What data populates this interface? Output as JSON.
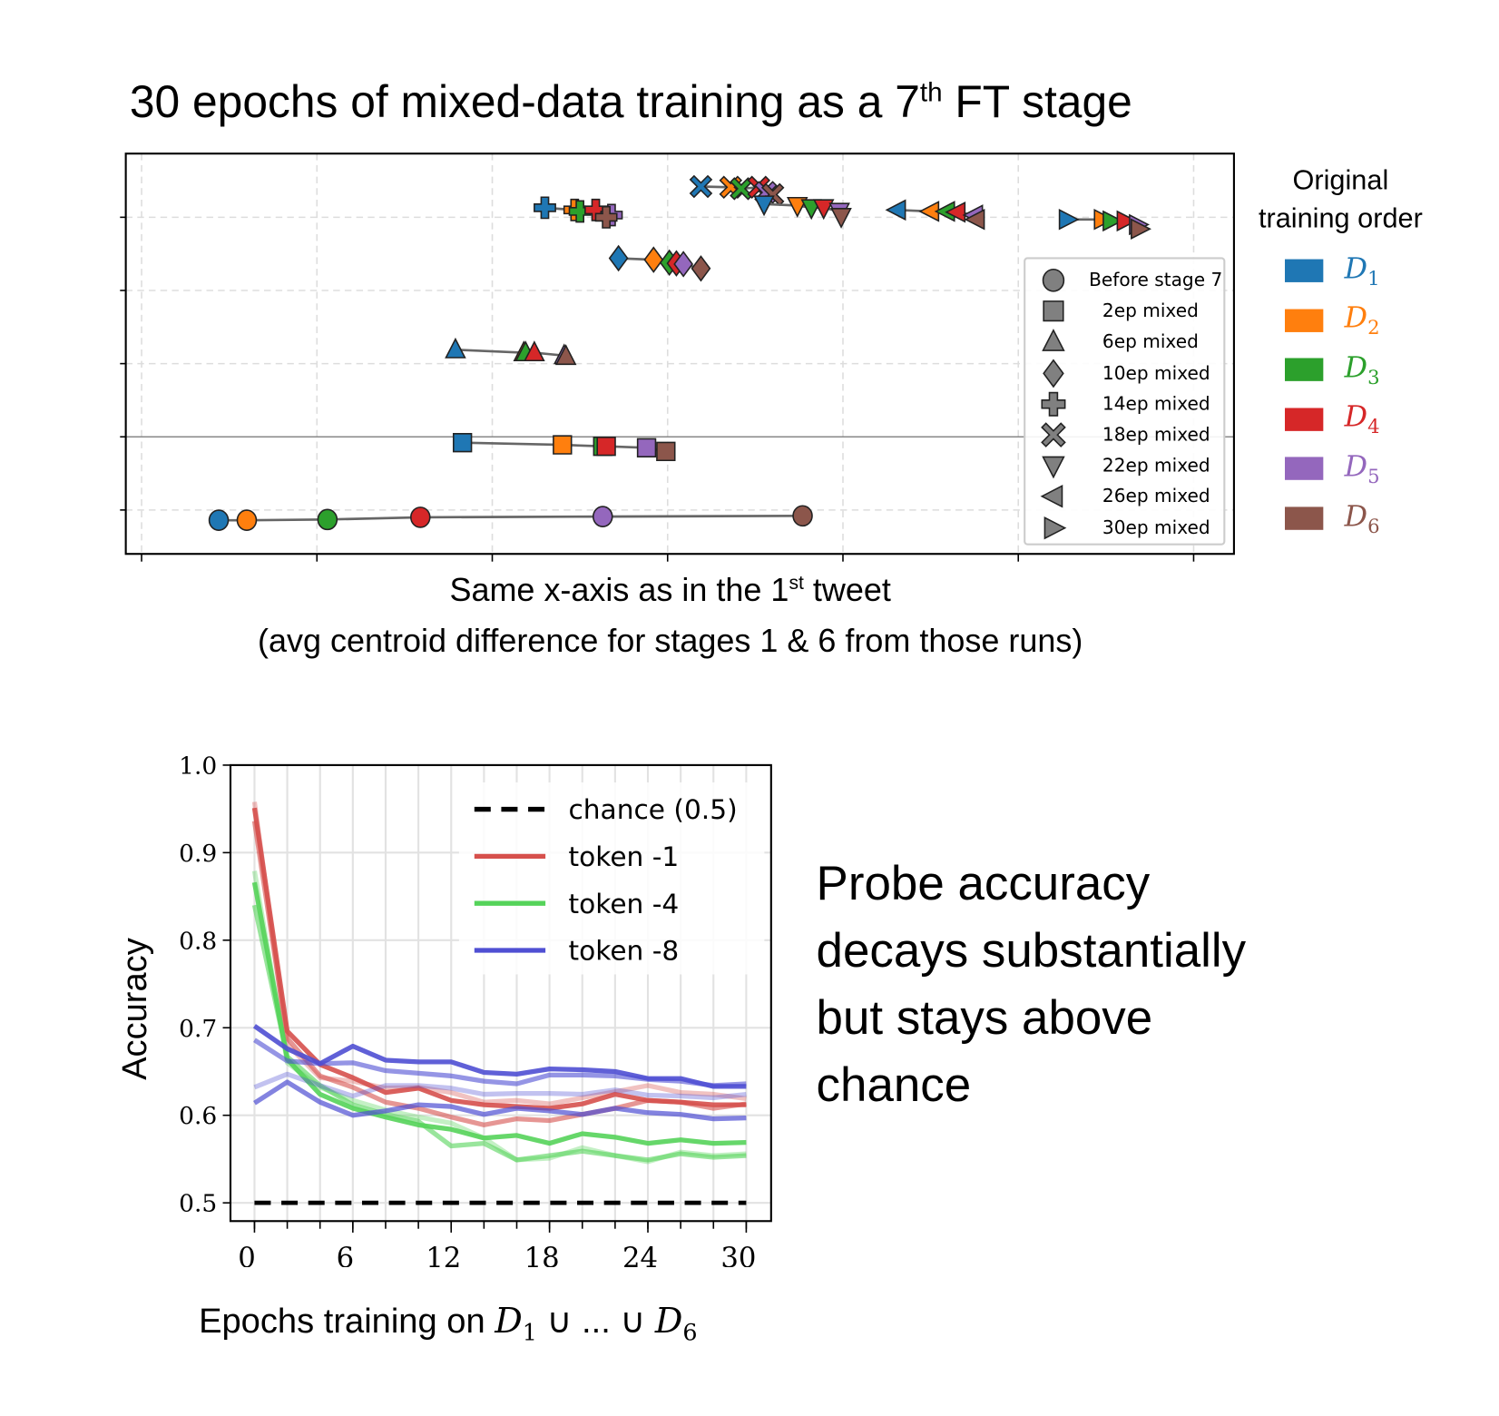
{
  "title": {
    "pre": "30 epochs of mixed-data training as a 7",
    "sup": "th",
    "post": " FT stage"
  },
  "chart_data": [
    {
      "type": "scatter",
      "title": "30 epochs of mixed-data training as a 7th FT stage",
      "xlabel_line1": {
        "pre": "Same x-axis as in the 1",
        "sup": "st",
        "post": " tweet"
      },
      "xlabel_line2": "(avg centroid difference for stages 1 & 6 from those runs)",
      "xlim": [
        -0.09,
        6.23
      ],
      "ylim": [
        -0.6,
        4.87
      ],
      "xticks": [
        0,
        1,
        2,
        3,
        4,
        5,
        6
      ],
      "yticks": [
        0,
        1,
        2,
        3,
        4
      ],
      "grid": "dashed",
      "reference_line_y": 1,
      "tick_labels_shown": false,
      "datasets": [
        {
          "key": "D1",
          "label": "D",
          "sub": "1",
          "color": "#1f77b4"
        },
        {
          "key": "D2",
          "label": "D",
          "sub": "2",
          "color": "#ff7f0e"
        },
        {
          "key": "D3",
          "label": "D",
          "sub": "3",
          "color": "#2ca02c"
        },
        {
          "key": "D4",
          "label": "D",
          "sub": "4",
          "color": "#d62728"
        },
        {
          "key": "D5",
          "label": "D",
          "sub": "5",
          "color": "#9467bd"
        },
        {
          "key": "D6",
          "label": "D",
          "sub": "6",
          "color": "#8c564b"
        }
      ],
      "dataset_legend_title": [
        "Original",
        "training order"
      ],
      "stage_legend_placement": "right-inside",
      "stages": [
        {
          "label": "Before stage 7",
          "marker": "circle",
          "points": [
            [
              0.44,
              -0.14
            ],
            [
              0.6,
              -0.14
            ],
            [
              1.06,
              -0.13
            ],
            [
              1.59,
              -0.1
            ],
            [
              2.63,
              -0.09
            ],
            [
              3.77,
              -0.08
            ]
          ]
        },
        {
          "label": "2ep mixed",
          "marker": "square",
          "points": [
            [
              1.83,
              0.92
            ],
            [
              2.4,
              0.89
            ],
            [
              2.63,
              0.87
            ],
            [
              2.65,
              0.87
            ],
            [
              2.88,
              0.85
            ],
            [
              2.99,
              0.8
            ]
          ]
        },
        {
          "label": "6ep mixed",
          "marker": "triangle-up",
          "points": [
            [
              1.79,
              2.19
            ],
            [
              2.18,
              2.15
            ],
            [
              2.19,
              2.15
            ],
            [
              2.24,
              2.15
            ],
            [
              2.41,
              2.11
            ],
            [
              2.42,
              2.1
            ]
          ]
        },
        {
          "label": "10ep mixed",
          "marker": "diamond",
          "points": [
            [
              2.72,
              3.44
            ],
            [
              2.92,
              3.42
            ],
            [
              3.01,
              3.38
            ],
            [
              3.05,
              3.37
            ],
            [
              3.09,
              3.36
            ],
            [
              3.19,
              3.3
            ]
          ]
        },
        {
          "label": "14ep mixed",
          "marker": "plus",
          "points": [
            [
              2.3,
              4.13
            ],
            [
              2.47,
              4.1
            ],
            [
              2.5,
              4.08
            ],
            [
              2.59,
              4.1
            ],
            [
              2.68,
              4.03
            ],
            [
              2.65,
              4.0
            ]
          ]
        },
        {
          "label": "18ep mixed",
          "marker": "x",
          "points": [
            [
              3.19,
              4.42
            ],
            [
              3.36,
              4.41
            ],
            [
              3.42,
              4.39
            ],
            [
              3.52,
              4.41
            ],
            [
              3.56,
              4.34
            ],
            [
              3.6,
              4.31
            ]
          ]
        },
        {
          "label": "22ep mixed",
          "marker": "triangle-down",
          "points": [
            [
              3.55,
              4.18
            ],
            [
              3.74,
              4.16
            ],
            [
              3.82,
              4.13
            ],
            [
              3.89,
              4.13
            ],
            [
              3.98,
              4.08
            ],
            [
              3.99,
              4.01
            ]
          ]
        },
        {
          "label": "26ep mixed",
          "marker": "triangle-left",
          "points": [
            [
              4.31,
              4.1
            ],
            [
              4.5,
              4.08
            ],
            [
              4.59,
              4.08
            ],
            [
              4.65,
              4.07
            ],
            [
              4.75,
              4.03
            ],
            [
              4.76,
              3.97
            ]
          ]
        },
        {
          "label": "30ep mixed",
          "marker": "triangle-right",
          "points": [
            [
              5.28,
              3.97
            ],
            [
              5.48,
              3.97
            ],
            [
              5.53,
              3.95
            ],
            [
              5.61,
              3.95
            ],
            [
              5.68,
              3.9
            ],
            [
              5.69,
              3.84
            ]
          ]
        }
      ]
    },
    {
      "type": "line",
      "ylabel": "Accuracy",
      "xlabel": {
        "pre": "Epochs training on  ",
        "d1": "D",
        "s1": "1",
        "mid": " ∪  ... ∪ ",
        "d6": "D",
        "s6": "6"
      },
      "xlim": [
        -1.5,
        31.5
      ],
      "ylim": [
        0.48,
        1.0
      ],
      "xticks": [
        0,
        6,
        12,
        18,
        24,
        30
      ],
      "xtick_labels": [
        "0",
        "6",
        "12",
        "18",
        "24",
        "30"
      ],
      "minor_xticks_every": 2,
      "yticks": [
        0.5,
        0.6,
        0.7,
        0.8,
        0.9,
        1.0
      ],
      "ytick_labels": [
        "0.5",
        "0.6",
        "0.7",
        "0.8",
        "0.9",
        "1.0"
      ],
      "grid": true,
      "legend_placement": "top-right",
      "x": [
        0,
        2,
        4,
        6,
        8,
        10,
        12,
        14,
        16,
        18,
        20,
        22,
        24,
        26,
        28,
        30
      ],
      "chance": {
        "name": "chance (0.5)",
        "value": 0.5,
        "color": "#000000"
      },
      "series": [
        {
          "name": "token -1",
          "color": "#d6504c",
          "runs": [
            [
              0.951,
              0.696,
              0.658,
              0.643,
              0.626,
              0.631,
              0.617,
              0.612,
              0.61,
              0.608,
              0.613,
              0.624,
              0.617,
              0.615,
              0.612,
              0.612
            ],
            [
              0.936,
              0.688,
              0.645,
              0.632,
              0.615,
              0.608,
              0.598,
              0.589,
              0.596,
              0.594,
              0.601,
              0.608,
              0.617,
              0.615,
              0.608,
              0.613
            ],
            [
              0.958,
              0.681,
              0.643,
              0.639,
              0.631,
              0.632,
              0.626,
              0.615,
              0.617,
              0.613,
              0.62,
              0.627,
              0.634,
              0.626,
              0.624,
              0.619
            ]
          ]
        },
        {
          "name": "token -4",
          "color": "#55d35a",
          "runs": [
            [
              0.866,
              0.664,
              0.624,
              0.608,
              0.598,
              0.589,
              0.584,
              0.574,
              0.577,
              0.568,
              0.579,
              0.575,
              0.568,
              0.572,
              0.568,
              0.569
            ],
            [
              0.84,
              0.667,
              0.634,
              0.612,
              0.601,
              0.593,
              0.565,
              0.568,
              0.549,
              0.554,
              0.559,
              0.554,
              0.549,
              0.556,
              0.552,
              0.554
            ],
            [
              0.879,
              0.66,
              0.632,
              0.617,
              0.606,
              0.598,
              0.591,
              0.574,
              0.549,
              0.551,
              0.563,
              0.554,
              0.547,
              0.558,
              0.554,
              0.556
            ]
          ]
        },
        {
          "name": "token -8",
          "color": "#4f4fd3",
          "runs": [
            [
              0.702,
              0.676,
              0.659,
              0.679,
              0.663,
              0.661,
              0.661,
              0.649,
              0.647,
              0.653,
              0.652,
              0.65,
              0.642,
              0.642,
              0.633,
              0.633
            ],
            [
              0.686,
              0.662,
              0.659,
              0.66,
              0.651,
              0.648,
              0.645,
              0.639,
              0.636,
              0.646,
              0.646,
              0.645,
              0.641,
              0.639,
              0.634,
              0.636
            ],
            [
              0.632,
              0.647,
              0.634,
              0.622,
              0.634,
              0.634,
              0.631,
              0.624,
              0.625,
              0.625,
              0.624,
              0.629,
              0.623,
              0.622,
              0.62,
              0.624
            ],
            [
              0.614,
              0.638,
              0.615,
              0.6,
              0.605,
              0.612,
              0.61,
              0.601,
              0.608,
              0.605,
              0.601,
              0.608,
              0.603,
              0.601,
              0.596,
              0.597
            ]
          ]
        }
      ]
    }
  ],
  "annotation": [
    "Probe accuracy",
    "decays substantially",
    "but stays above",
    "chance"
  ]
}
